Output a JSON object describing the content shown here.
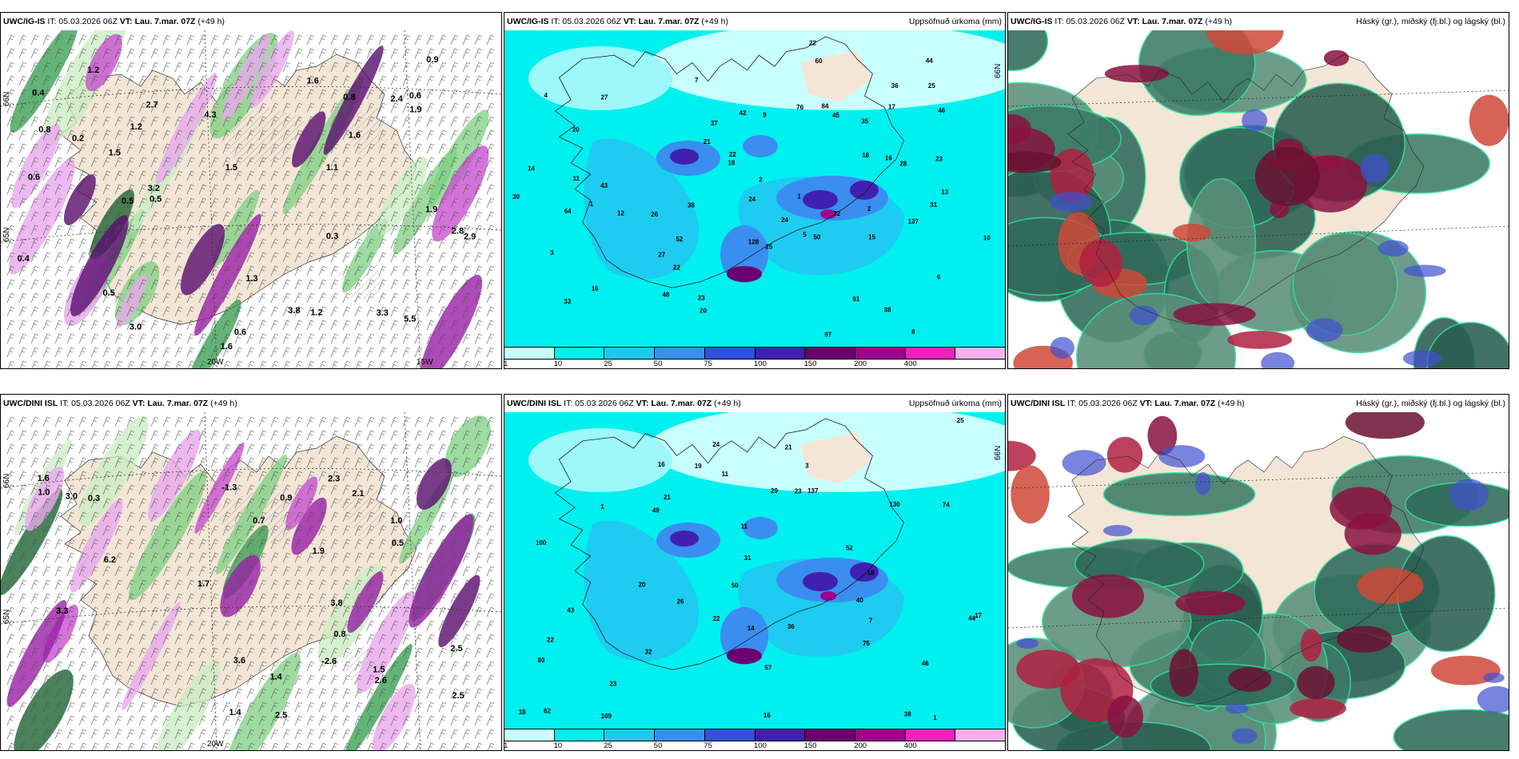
{
  "panels": [
    {
      "model": "UWC/IG-IS",
      "it": "IT: 05.03.2026 06Z",
      "vt": "VT: Lau. 7.mar. 07Z",
      "lead": "(+49 h)",
      "right": "",
      "kind": "wind"
    },
    {
      "model": "UWC/IG-IS",
      "it": "IT: 05.03.2026 06Z",
      "vt": "VT: Lau. 7.mar. 07Z",
      "lead": "(+49 h)",
      "right": "Uppsöfnuð úrkoma (mm)",
      "kind": "precip"
    },
    {
      "model": "UWC/IG-IS",
      "it": "IT: 05.03.2026 06Z",
      "vt": "VT: Lau. 7.mar. 07Z",
      "lead": "(+49 h)",
      "right": "Háský (gr.), miðský (fj.bl.) og lágský (bl.)",
      "kind": "cloud"
    },
    {
      "model": "UWC/DINI ISL",
      "it": "IT: 05.03.2026 06Z",
      "vt": "VT: Lau. 7.mar. 07Z",
      "lead": "(+49 h)",
      "right": "",
      "kind": "wind"
    },
    {
      "model": "UWC/DINI ISL",
      "it": "IT: 05.03.2026 06Z",
      "vt": "VT: Lau. 7.mar. 07Z",
      "lead": "(+49 h)",
      "right": "Uppsöfnuð úrkoma (mm)",
      "kind": "precip"
    },
    {
      "model": "UWC/DINI ISL",
      "it": "IT: 05.03.2026 06Z",
      "vt": "VT: Lau. 7.mar. 07Z",
      "lead": "(+49 h)",
      "right": "Háský (gr.), miðský (fj.bl.) og lágský (bl.)",
      "kind": "cloud"
    }
  ],
  "colorbar": {
    "ticks": [
      "1",
      "10",
      "25",
      "50",
      "75",
      "100",
      "150",
      "200",
      "400"
    ],
    "colors": [
      "#c8ffff",
      "#00f0f0",
      "#20c8f0",
      "#3a8ef0",
      "#3050e0",
      "#4020b0",
      "#6a0070",
      "#a00090",
      "#f020c0",
      "#f8b0f0"
    ]
  },
  "wind_panels": {
    "ig": {
      "lat_labels": [
        "66N",
        "65N"
      ],
      "lon_labels": [
        "20W",
        "15W"
      ],
      "values": [
        "0.8",
        "1.2",
        "1.1",
        "0.6",
        "2.4",
        "1.6",
        "0.3",
        "0.5",
        "0.6",
        "2.9",
        "2.8",
        "2.7",
        "1.6",
        "0.5",
        "0.6",
        "3.0",
        "3.2",
        "4.3",
        "5.5",
        "3.8",
        "3.3",
        "1.9",
        "1.5",
        "1.3",
        "0.8",
        "1.5",
        "1.9",
        "1.6",
        "1.2",
        "0.5",
        "0.4",
        "1.2",
        "0.9",
        "0.2",
        "0.4"
      ]
    },
    "dini": {
      "lat_labels": [
        "66N",
        "65N"
      ],
      "lon_labels": [
        "20W"
      ],
      "values": [
        "0.7",
        "2.6",
        "1.6",
        "1.0",
        "1.4",
        "-1.3",
        "2.5",
        "2.3",
        "6.2",
        "3.3",
        "1.5",
        "0.9",
        "3.8",
        "3.0",
        "2.5",
        "2.1",
        "2.5",
        "-2.6",
        "1.4",
        "0.8",
        "1.0",
        "3.6",
        "1.9",
        "1.7",
        "0.5",
        "0.3"
      ]
    }
  },
  "precip_panels": {
    "ig": {
      "lat_label": "66N",
      "values": [
        "8",
        "1",
        "5",
        "4",
        "6",
        "20",
        "16",
        "26",
        "35",
        "42",
        "45",
        "38",
        "22",
        "7",
        "1",
        "3",
        "2",
        "2",
        "14",
        "33",
        "44",
        "9",
        "16",
        "10",
        "13",
        "11",
        "12",
        "24",
        "18",
        "25",
        "50",
        "64",
        "27",
        "84",
        "37",
        "137",
        "31",
        "61",
        "36",
        "97",
        "52",
        "25",
        "48",
        "22",
        "38",
        "43",
        "46",
        "60",
        "76",
        "128",
        "32",
        "23",
        "15",
        "28",
        "21",
        "30",
        "20",
        "22",
        "24",
        "18",
        "23",
        "17",
        "27"
      ]
    },
    "dini": {
      "lat_label": "66N",
      "values": [
        "11",
        "1",
        "7",
        "16",
        "18",
        "50",
        "26",
        "31",
        "38",
        "20",
        "11",
        "1",
        "3",
        "25",
        "46",
        "75",
        "21",
        "23",
        "44",
        "74",
        "57",
        "137",
        "100",
        "109",
        "80",
        "62",
        "14",
        "36",
        "49",
        "130",
        "29",
        "22",
        "24",
        "32",
        "40",
        "52",
        "43",
        "23",
        "17",
        "19",
        "18",
        "21",
        "22",
        "16"
      ]
    }
  }
}
